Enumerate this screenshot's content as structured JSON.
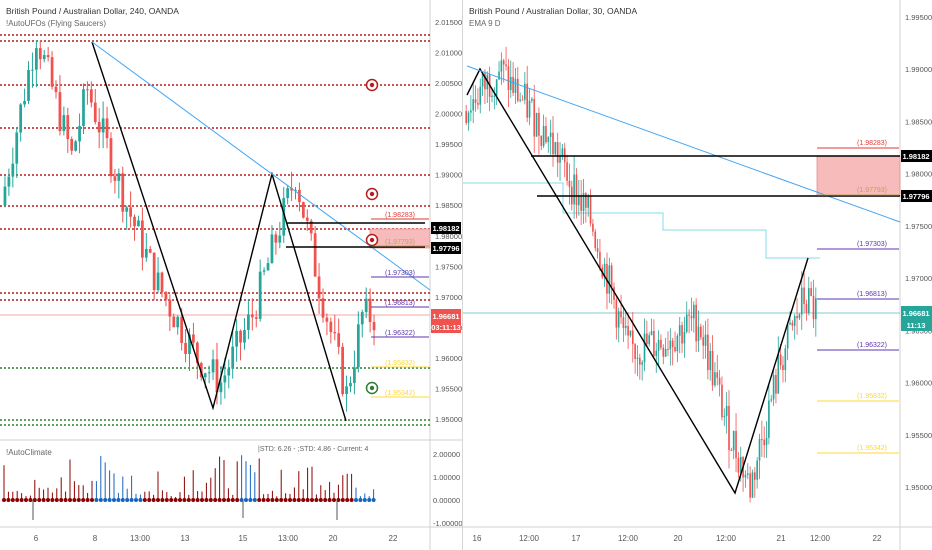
{
  "left_chart": {
    "title": "British Pound / Australian Dollar, 240, OANDA",
    "indicator": "!AutoUFOs (Flying Saucers)",
    "sub_indicator": "!AutoClimate",
    "sub_stats": "|STD: 6.26 - ;STD: 4.86 - Current: 4",
    "price_ticks": [
      "2.01500",
      "2.01000",
      "2.00500",
      "2.00000",
      "1.99500",
      "1.99000",
      "1.98500",
      "1.98000",
      "1.97500",
      "1.97000",
      "1.96500",
      "1.96000",
      "1.95500",
      "1.95000"
    ],
    "sub_ticks": [
      "2.00000",
      "1.00000",
      "0.00000",
      "-1.00000"
    ],
    "time_ticks": [
      "6",
      "8",
      "13:00",
      "13",
      "15",
      "13:00",
      "20",
      "22"
    ],
    "tags": {
      "level_high": "1.98182",
      "level_low": "1.97796",
      "current": "1.96681",
      "countdown": "03:11:13"
    },
    "level_labels": [
      "(1.98283)",
      "(1.97793)",
      "(1.97303)",
      "(1.96813)",
      "(1.96322)",
      "(1.95832)",
      "(1.95342)"
    ]
  },
  "right_chart": {
    "title": "British Pound / Australian Dollar, 30, OANDA",
    "indicator": "EMA 9 D",
    "price_ticks": [
      "1.99500",
      "1.99000",
      "1.98500",
      "1.98000",
      "1.97500",
      "1.97000",
      "1.96500",
      "1.96000",
      "1.95500",
      "1.95000"
    ],
    "time_ticks": [
      "16",
      "12:00",
      "17",
      "12:00",
      "20",
      "12:00",
      "21",
      "12:00",
      "22"
    ],
    "tags": {
      "level_high": "1.98182",
      "level_low": "1.97796",
      "current": "1.96681",
      "countdown": "11:13"
    },
    "level_labels": [
      "(1.98283)",
      "(1.97793)",
      "(1.97303)",
      "(1.96813)",
      "(1.96322)",
      "(1.95832)",
      "(1.95342)"
    ]
  },
  "colors": {
    "bull": "#26a69a",
    "bear": "#ef5350",
    "resistance_dots": "#b71c1c",
    "support_dots": "#2e7d32",
    "trendline": "#42a5f5",
    "zone": "#f8bbbb",
    "level_red": "#e53935",
    "level_purple": "#5e35b1",
    "level_yellow": "#fdd835",
    "current_tag": "#ef5350",
    "current_tag_right": "#26a69a",
    "ema": "#80deea"
  }
}
